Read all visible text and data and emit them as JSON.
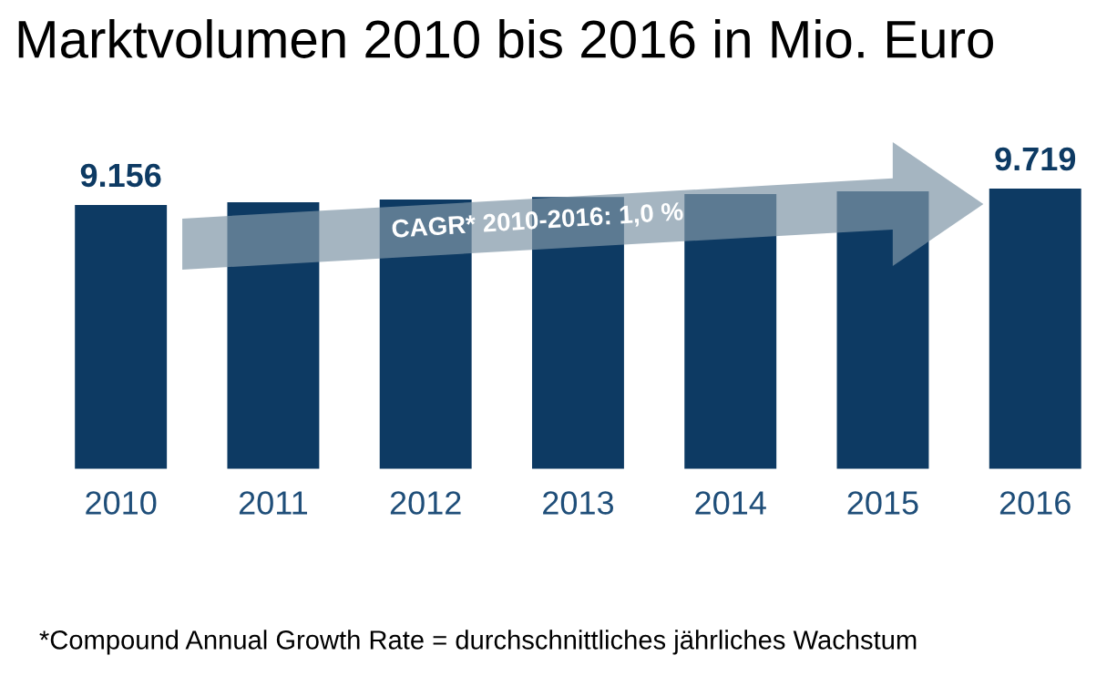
{
  "chart_data": {
    "type": "bar",
    "title": "Marktvolumen 2010 bis 2016 in Mio. Euro",
    "categories": [
      "2010",
      "2011",
      "2012",
      "2013",
      "2014",
      "2015",
      "2016"
    ],
    "values": [
      9156,
      9250,
      9340,
      9430,
      9530,
      9620,
      9719
    ],
    "value_labels": [
      "9.156",
      null,
      null,
      null,
      null,
      null,
      "9.719"
    ],
    "color": "#0d3a63",
    "tick_labels": "x",
    "grid": false,
    "legend": false,
    "annotations": [
      "CAGR* 2010-2016: 1,0 %",
      "*Compound Annual Growth Rate = durchschnittliches jährliches Wachstum"
    ]
  }
}
